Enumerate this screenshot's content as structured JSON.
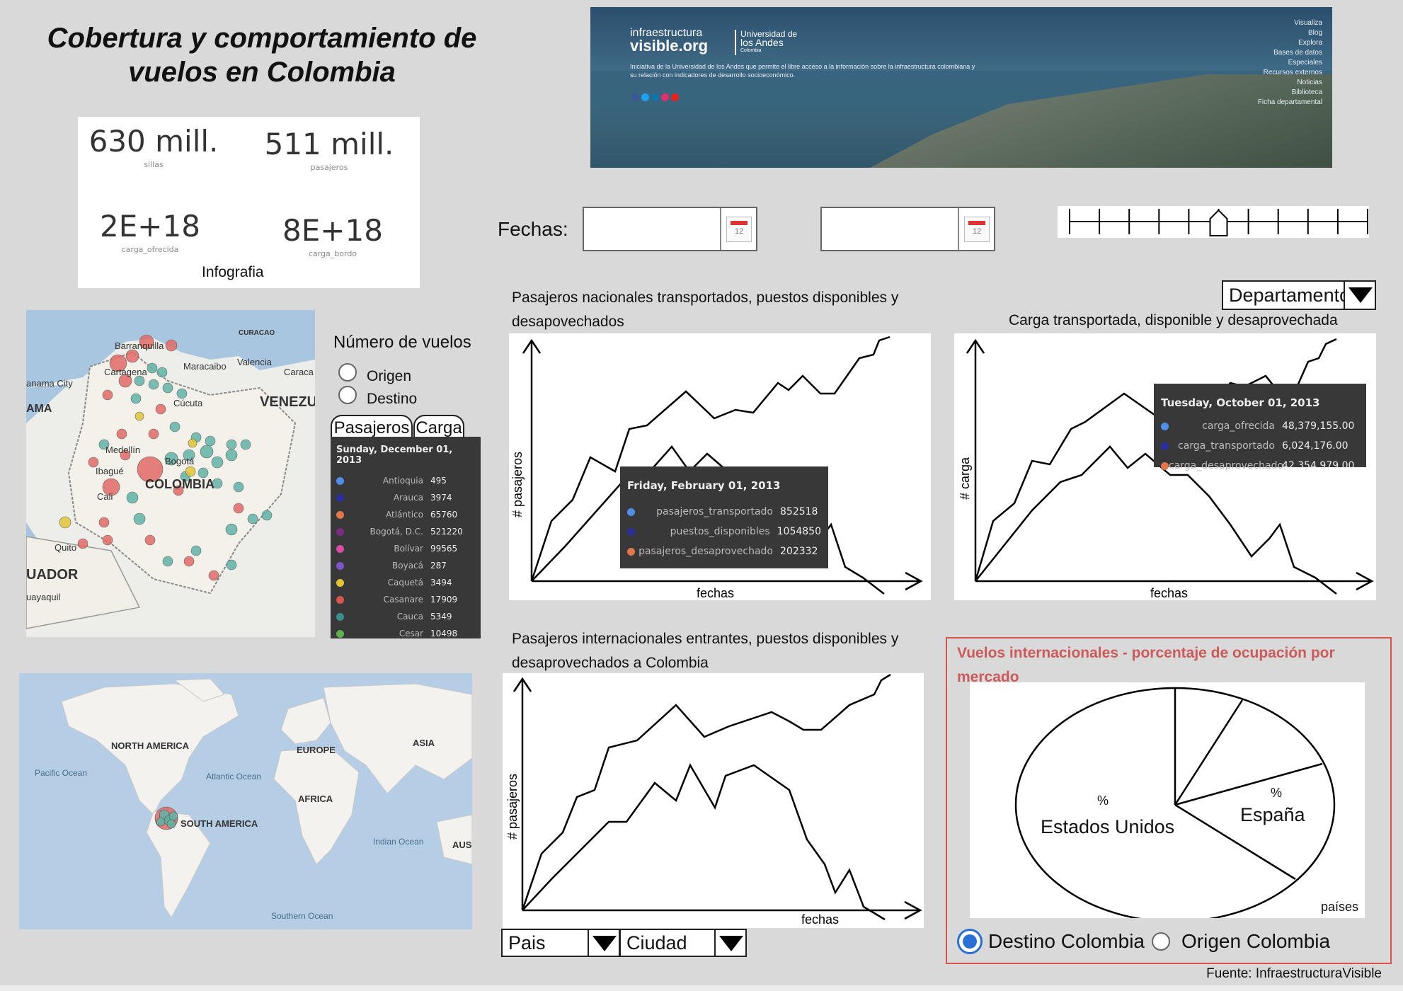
{
  "title": "Cobertura y comportamiento de vuelos en Colombia",
  "kpis": [
    {
      "value": "630 mill.",
      "label": "sillas"
    },
    {
      "value": "511 mill.",
      "label": "pasajeros"
    },
    {
      "value": "2E+18",
      "label": "carga_ofrecida"
    },
    {
      "value": "8E+18",
      "label": "carga_bordo"
    }
  ],
  "kpi_caption": "Infografia",
  "banner": {
    "logo_top": "infraestructura",
    "logo_bottom": "visible.org",
    "uni_line1": "Universidad de",
    "uni_line2": "los Andes",
    "uni_line3": "Colombia",
    "description": "Iniciativa de la Universidad de los Andes que permite el libre acceso a la información sobre la infraestructura colombiana y su relación con indicadores de desarrollo socioeconómico.",
    "menu": [
      "Visualiza",
      "Blog",
      "Explora",
      "Bases de datos",
      "Especiales",
      "Recursos externos",
      "Noticias",
      "Biblioteca",
      "Ficha departamental"
    ]
  },
  "filters": {
    "fechas_label": "Fechas:",
    "start_date": "",
    "end_date": "",
    "slider_ticks": 10,
    "slider_position": 0.5
  },
  "map_colombia": {
    "labels": [
      "CURACAO",
      "Barranquilla",
      "Cartagena",
      "Maracaibo",
      "Valencia",
      "Caraca",
      "anama City",
      "AMA",
      "Cúcuta",
      "VENEZU",
      "Medellín",
      "Bogotá",
      "Ibagué",
      "COLOMBIA",
      "Cali",
      "Quito",
      "UADOR",
      "uayaquil"
    ]
  },
  "vuelos": {
    "label": "Número de vuelos",
    "options": [
      "Origen",
      "Destino"
    ],
    "tabs": [
      "Pasajeros",
      "Carga"
    ]
  },
  "dept_tooltip": {
    "date": "Sunday, December 01, 2013",
    "rows": [
      {
        "name": "Antioquia",
        "value": "495",
        "color": "#4f8fe8"
      },
      {
        "name": "Arauca",
        "value": "3974",
        "color": "#2a2f9c"
      },
      {
        "name": "Atlántico",
        "value": "65760",
        "color": "#e0764a"
      },
      {
        "name": "Bogotá, D.C.",
        "value": "521220",
        "color": "#7a2b83"
      },
      {
        "name": "Bolívar",
        "value": "99565",
        "color": "#d64fa5"
      },
      {
        "name": "Boyacá",
        "value": "287",
        "color": "#7b55c9"
      },
      {
        "name": "Caquetá",
        "value": "3494",
        "color": "#e1c534"
      },
      {
        "name": "Casanare",
        "value": "17909",
        "color": "#d8584f"
      },
      {
        "name": "Cauca",
        "value": "5349",
        "color": "#3b8f8a"
      },
      {
        "name": "Cesar",
        "value": "10498",
        "color": "#5fb24f"
      }
    ]
  },
  "map_world": {
    "labels": [
      "NORTH AMERICA",
      "EUROPE",
      "ASIA",
      "Pacific Ocean",
      "Atlantic Ocean",
      "AFRICA",
      "SOUTH AMERICA",
      "Indian Ocean",
      "AUS",
      "Southern Ocean"
    ]
  },
  "dept_select": "Departamento",
  "chart_nacionales": {
    "title": "Pasajeros nacionales transportados, puestos disponibles y desapovechados",
    "xlabel": "fechas",
    "ylabel": "# pasajeros",
    "tooltip": {
      "date": "Friday, February 01, 2013",
      "rows": [
        {
          "name": "pasajeros_transportado",
          "value": "852518",
          "color": "#4f8fe8"
        },
        {
          "name": "puestos_disponibles",
          "value": "1054850",
          "color": "#2a2f9c"
        },
        {
          "name": "pasajeros_desaprovechado",
          "value": "202332",
          "color": "#e0764a"
        }
      ]
    }
  },
  "chart_carga": {
    "title": "Carga transportada, disponible y desaprovechada",
    "xlabel": "fechas",
    "ylabel": "# carga",
    "tooltip": {
      "date": "Tuesday, October 01, 2013",
      "rows": [
        {
          "name": "carga_ofrecida",
          "value": "48,379,155.00",
          "color": "#4f8fe8"
        },
        {
          "name": "carga_transportado",
          "value": "6,024,176.00",
          "color": "#2a2f9c"
        },
        {
          "name": "carga_desaprovechado",
          "value": "42,354,979.00",
          "color": "#e0764a"
        }
      ]
    }
  },
  "chart_internacionales": {
    "title": "Pasajeros internacionales entrantes, puestos disponibles y desaprovechados a Colombia",
    "xlabel": "fechas",
    "ylabel": "# pasajeros",
    "selects": [
      "Pais",
      "Ciudad"
    ]
  },
  "pie": {
    "title": "Vuelos internacionales - porcentaje de ocupación por mercado",
    "labels": [
      "Estados Unidos",
      "España"
    ],
    "pct_label": "%",
    "legend_label": "países",
    "radio_options": [
      "Destino Colombia",
      "Origen Colombia"
    ],
    "selected": "Destino Colombia"
  },
  "footer": "Fuente: InfraestructuraVisible"
}
